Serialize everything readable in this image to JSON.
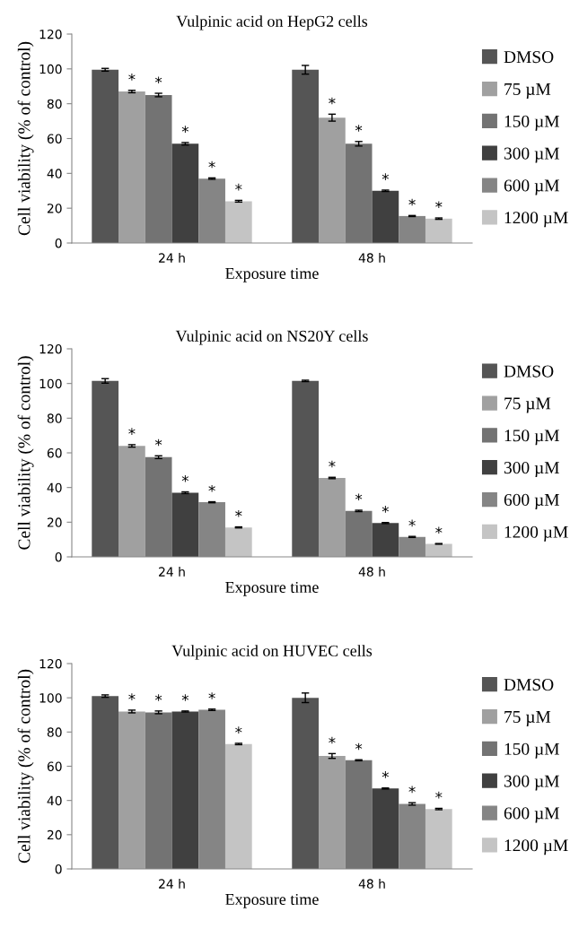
{
  "chart_data": [
    {
      "type": "bar",
      "title": "Vulpinic acid on HepG2 cells",
      "xlabel": "Exposure time",
      "ylabel": "Cell viability (% of control)",
      "categories": [
        "24 h",
        "48 h"
      ],
      "ylim": [
        0,
        120
      ],
      "yticks": [
        0,
        20,
        40,
        60,
        80,
        100,
        120
      ],
      "grid": false,
      "legend": "right",
      "series": [
        {
          "name": "DMSO",
          "color": "#555555",
          "values": [
            99.5,
            99.5
          ],
          "errors": [
            0.8,
            2.5
          ]
        },
        {
          "name": "75 µM",
          "color": "#a0a0a0",
          "values": [
            87,
            72
          ],
          "errors": [
            0.7,
            2
          ],
          "value_labels": [
            "*",
            "*"
          ]
        },
        {
          "name": "150 µM",
          "color": "#737373",
          "values": [
            85,
            57
          ],
          "errors": [
            1,
            1.3
          ],
          "value_labels": [
            "*",
            "*"
          ]
        },
        {
          "name": "300 µM",
          "color": "#404040",
          "values": [
            57,
            30
          ],
          "errors": [
            0.7,
            0.4
          ],
          "value_labels": [
            "*",
            "*"
          ]
        },
        {
          "name": "600 µM",
          "color": "#858585",
          "values": [
            37,
            15.5
          ],
          "errors": [
            0.4,
            0.3
          ],
          "value_labels": [
            "*",
            "*"
          ]
        },
        {
          "name": "1200 µM",
          "color": "#c4c4c4",
          "values": [
            24,
            14
          ],
          "errors": [
            0.5,
            0.4
          ],
          "value_labels": [
            "*",
            "*"
          ]
        }
      ]
    },
    {
      "type": "bar",
      "title": "Vulpinic acid on NS20Y cells",
      "xlabel": "Exposure time",
      "ylabel": "Cell viability (% of control)",
      "categories": [
        "24 h",
        "48 h"
      ],
      "ylim": [
        0,
        120
      ],
      "yticks": [
        0,
        20,
        40,
        60,
        80,
        100,
        120
      ],
      "grid": false,
      "legend": "right",
      "series": [
        {
          "name": "DMSO",
          "color": "#555555",
          "values": [
            101.5,
            101.5
          ],
          "errors": [
            1.3,
            0.4
          ]
        },
        {
          "name": "75 µM",
          "color": "#a0a0a0",
          "values": [
            64,
            45.5
          ],
          "errors": [
            0.7,
            0.4
          ],
          "value_labels": [
            "*",
            "*"
          ]
        },
        {
          "name": "150 µM",
          "color": "#737373",
          "values": [
            57.5,
            26.5
          ],
          "errors": [
            0.8,
            0.4
          ],
          "value_labels": [
            "*",
            "*"
          ]
        },
        {
          "name": "300 µM",
          "color": "#404040",
          "values": [
            37,
            19.5
          ],
          "errors": [
            0.5,
            0.3
          ],
          "value_labels": [
            "*",
            "*"
          ]
        },
        {
          "name": "600 µM",
          "color": "#858585",
          "values": [
            31.5,
            11.5
          ],
          "errors": [
            0.3,
            0.3
          ],
          "value_labels": [
            "*",
            "*"
          ]
        },
        {
          "name": "1200 µM",
          "color": "#c4c4c4",
          "values": [
            17,
            7.5
          ],
          "errors": [
            0.3,
            0.2
          ],
          "value_labels": [
            "*",
            "*"
          ]
        }
      ]
    },
    {
      "type": "bar",
      "title": "Vulpinic acid on HUVEC cells",
      "xlabel": "Exposure time",
      "ylabel": "Cell viability (% of control)",
      "categories": [
        "24 h",
        "48 h"
      ],
      "ylim": [
        0,
        120
      ],
      "yticks": [
        0,
        20,
        40,
        60,
        80,
        100,
        120
      ],
      "grid": false,
      "legend": "right",
      "series": [
        {
          "name": "DMSO",
          "color": "#555555",
          "values": [
            101,
            100
          ],
          "errors": [
            0.7,
            2.8
          ]
        },
        {
          "name": "75 µM",
          "color": "#a0a0a0",
          "values": [
            92,
            66
          ],
          "errors": [
            0.8,
            1.4
          ],
          "value_labels": [
            "*",
            "*"
          ]
        },
        {
          "name": "150 µM",
          "color": "#737373",
          "values": [
            91.5,
            63.5
          ],
          "errors": [
            0.8,
            0.3
          ],
          "value_labels": [
            "*",
            "*"
          ]
        },
        {
          "name": "300 µM",
          "color": "#404040",
          "values": [
            92,
            47
          ],
          "errors": [
            0.3,
            0.3
          ],
          "value_labels": [
            "*",
            "*"
          ]
        },
        {
          "name": "600 µM",
          "color": "#858585",
          "values": [
            93,
            38
          ],
          "errors": [
            0.4,
            0.7
          ],
          "value_labels": [
            "*",
            "*"
          ]
        },
        {
          "name": "1200 µM",
          "color": "#c4c4c4",
          "values": [
            73,
            35
          ],
          "errors": [
            0.4,
            0.4
          ],
          "value_labels": [
            "*",
            "*"
          ]
        }
      ]
    }
  ]
}
